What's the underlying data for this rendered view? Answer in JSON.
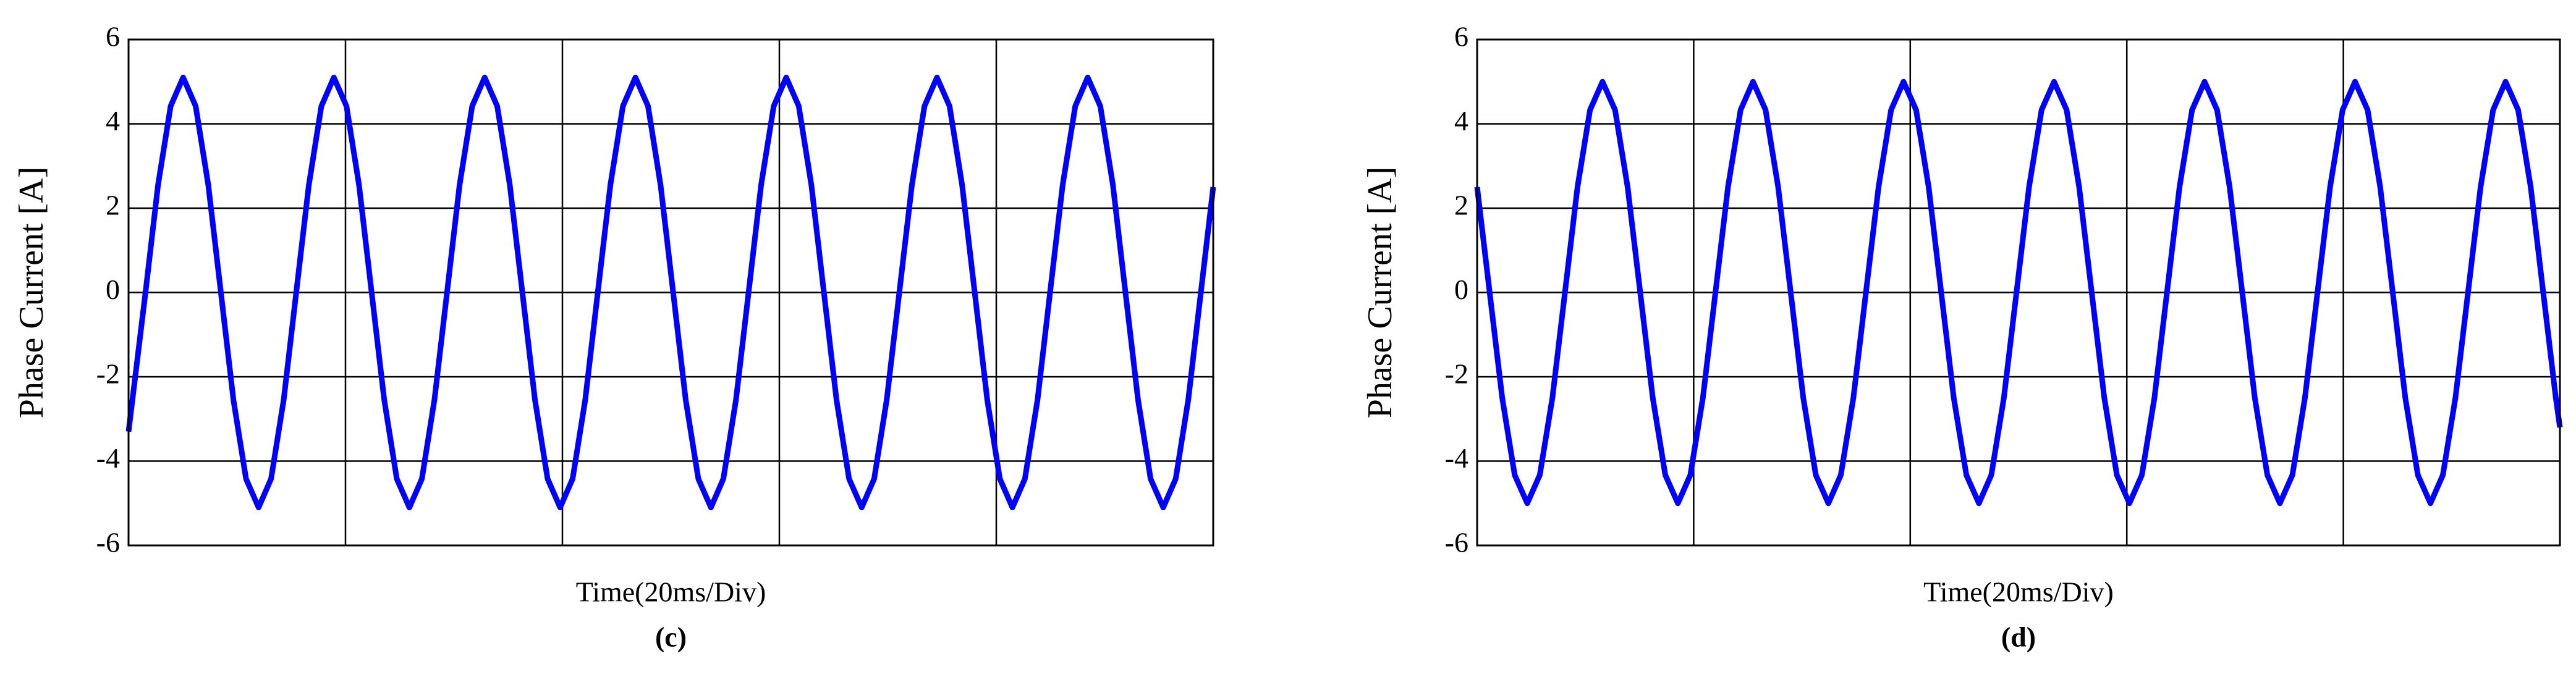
{
  "chart_data": [
    {
      "type": "line",
      "ylabel": "Phase Current [A]",
      "xlabel": "Time(20ms/Div)",
      "caption": "(c)",
      "color": "#0000ff",
      "xlim": [
        0,
        100
      ],
      "xticks": [
        20,
        40,
        60,
        80
      ],
      "ylim": [
        -6,
        6
      ],
      "yticks": [
        -6,
        -4,
        -2,
        0,
        2,
        4,
        6
      ],
      "grid": true,
      "x": [
        0,
        1.56,
        2.72,
        3.88,
        5.03,
        6.19,
        7.35,
        8.51,
        9.67,
        10.83,
        11.99,
        13.14,
        14.3,
        15.46,
        16.62,
        17.78,
        18.93,
        20.09,
        21.25,
        22.41,
        23.57,
        24.73,
        25.89,
        27.04,
        28.2,
        29.36,
        30.52,
        31.68,
        32.83,
        33.99,
        35.15,
        36.31,
        37.47,
        38.63,
        39.79,
        40.94,
        42.1,
        43.26,
        44.42,
        45.58,
        46.73,
        47.89,
        49.05,
        50.21,
        51.37,
        52.53,
        53.69,
        54.84,
        56,
        57.16,
        58.32,
        59.48,
        60.63,
        61.79,
        62.95,
        64.11,
        65.27,
        66.43,
        67.59,
        68.74,
        69.9,
        71.06,
        72.22,
        73.38,
        74.53,
        75.69,
        76.85,
        78.01,
        79.17,
        80.33,
        81.49,
        82.64,
        83.8,
        84.96,
        86.12,
        87.28,
        88.43,
        89.59,
        90.75,
        91.91,
        93.07,
        94.23,
        95.39,
        96.54,
        97.7,
        98.86,
        100
      ],
      "values": [
        -3.3,
        0,
        2.55,
        4.42,
        5.1,
        4.42,
        2.55,
        0,
        -2.55,
        -4.42,
        -5.1,
        -4.42,
        -2.55,
        0,
        2.55,
        4.42,
        5.1,
        4.42,
        2.55,
        0,
        -2.55,
        -4.42,
        -5.1,
        -4.42,
        -2.55,
        0,
        2.55,
        4.42,
        5.1,
        4.42,
        2.55,
        0,
        -2.55,
        -4.42,
        -5.1,
        -4.42,
        -2.55,
        0,
        2.55,
        4.42,
        5.1,
        4.42,
        2.55,
        0,
        -2.55,
        -4.42,
        -5.1,
        -4.42,
        -2.55,
        0,
        2.55,
        4.42,
        5.1,
        4.42,
        2.55,
        0,
        -2.55,
        -4.42,
        -5.1,
        -4.42,
        -2.55,
        0,
        2.55,
        4.42,
        5.1,
        4.42,
        2.55,
        0,
        -2.55,
        -4.42,
        -5.1,
        -4.42,
        -2.55,
        0,
        2.55,
        4.42,
        5.1,
        4.42,
        2.55,
        0,
        -2.55,
        -4.42,
        -5.1,
        -4.42,
        -2.55,
        0,
        2.5
      ]
    },
    {
      "type": "line",
      "ylabel": "Phase Current [A]",
      "xlabel": "Time(20ms/Div)",
      "caption": "(d)",
      "color": "#0000ff",
      "xlim": [
        0,
        100
      ],
      "xticks": [
        20,
        40,
        60,
        80
      ],
      "ylim": [
        -6,
        6
      ],
      "yticks": [
        -6,
        -4,
        -2,
        0,
        2,
        4,
        6
      ],
      "grid": true,
      "x": [
        0,
        1.16,
        2.32,
        3.47,
        4.63,
        5.79,
        6.95,
        8.11,
        9.27,
        10.43,
        11.58,
        12.74,
        13.9,
        15.06,
        16.22,
        17.38,
        18.54,
        19.69,
        20.85,
        22.01,
        23.17,
        24.33,
        25.48,
        26.64,
        27.8,
        28.96,
        30.12,
        31.28,
        32.44,
        33.59,
        34.75,
        35.91,
        37.07,
        38.23,
        39.38,
        40.54,
        41.7,
        42.86,
        44.02,
        45.18,
        46.34,
        47.49,
        48.65,
        49.81,
        50.97,
        52.13,
        53.28,
        54.44,
        55.6,
        56.76,
        57.92,
        59.08,
        60.24,
        61.39,
        62.55,
        63.71,
        64.87,
        66.03,
        67.18,
        68.34,
        69.5,
        70.66,
        71.82,
        72.98,
        74.14,
        75.29,
        76.45,
        77.61,
        78.77,
        79.93,
        81.08,
        82.24,
        83.4,
        84.56,
        85.72,
        86.88,
        88.04,
        89.19,
        90.35,
        91.51,
        92.67,
        93.83,
        94.98,
        96.14,
        97.3,
        98.46,
        99.62,
        100
      ],
      "values": [
        2.5,
        0,
        -2.5,
        -4.33,
        -5,
        -4.33,
        -2.5,
        0,
        2.5,
        4.33,
        5,
        4.33,
        2.5,
        0,
        -2.5,
        -4.33,
        -5,
        -4.33,
        -2.5,
        0,
        2.5,
        4.33,
        5,
        4.33,
        2.5,
        0,
        -2.5,
        -4.33,
        -5,
        -4.33,
        -2.5,
        0,
        2.5,
        4.33,
        5,
        4.33,
        2.5,
        0,
        -2.5,
        -4.33,
        -5,
        -4.33,
        -2.5,
        0,
        2.5,
        4.33,
        5,
        4.33,
        2.5,
        0,
        -2.5,
        -4.33,
        -5,
        -4.33,
        -2.5,
        0,
        2.5,
        4.33,
        5,
        4.33,
        2.5,
        0,
        -2.5,
        -4.33,
        -5,
        -4.33,
        -2.5,
        0,
        2.5,
        4.33,
        5,
        4.33,
        2.5,
        0,
        -2.5,
        -4.33,
        -5,
        -4.33,
        -2.5,
        0,
        2.5,
        4.33,
        5,
        4.33,
        2.5,
        0,
        -2.5,
        -3.2
      ]
    }
  ]
}
